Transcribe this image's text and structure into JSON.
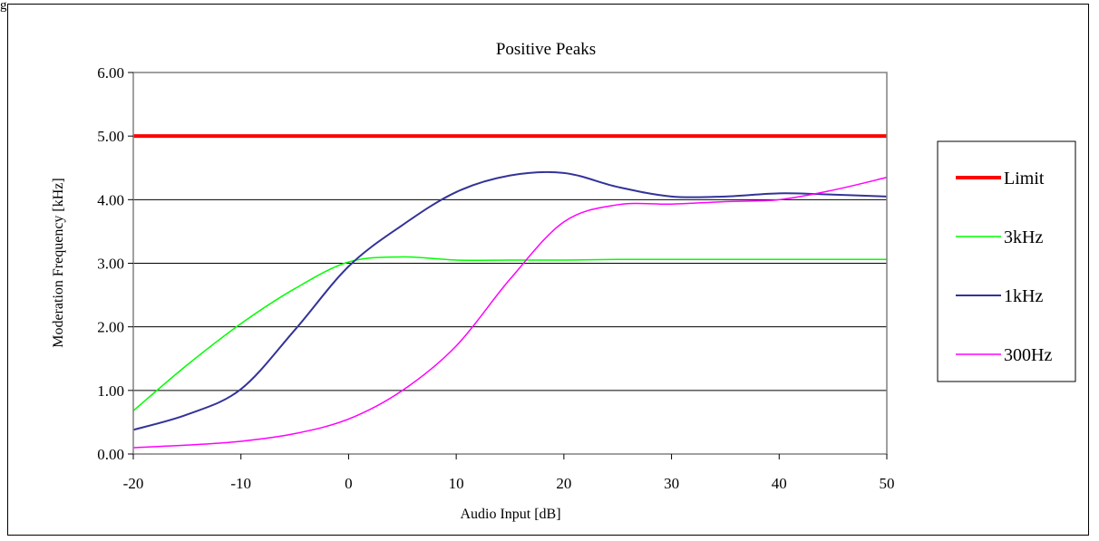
{
  "top_label": "g",
  "chart_data": {
    "type": "line",
    "title": "Positive Peaks",
    "xlabel": "Audio Input [dB]",
    "ylabel": "Moderation Frequency [kHz]",
    "xlim": [
      -20,
      50
    ],
    "ylim": [
      0,
      6
    ],
    "x_ticks": [
      -20,
      -10,
      0,
      10,
      20,
      30,
      40,
      50
    ],
    "x_tick_labels": [
      "-20",
      "-10",
      "0",
      "10",
      "20",
      "30",
      "40",
      "50"
    ],
    "y_ticks": [
      0,
      1,
      2,
      3,
      4,
      5,
      6
    ],
    "y_tick_labels": [
      "0.00",
      "1.00",
      "2.00",
      "3.00",
      "4.00",
      "5.00",
      "6.00"
    ],
    "grid": "horizontal",
    "legend_position": "right",
    "series": [
      {
        "name": "Limit",
        "color": "#ff0000",
        "width": 4,
        "x": [
          -20,
          50
        ],
        "y": [
          5.0,
          5.0
        ]
      },
      {
        "name": "3kHz",
        "color": "#00ff00",
        "width": 1.5,
        "x": [
          -20,
          -15,
          -10,
          -5,
          0,
          5,
          10,
          15,
          20,
          25,
          30,
          35,
          40,
          45,
          50
        ],
        "y": [
          0.68,
          1.4,
          2.05,
          2.6,
          3.02,
          3.1,
          3.05,
          3.05,
          3.05,
          3.06,
          3.06,
          3.06,
          3.06,
          3.06,
          3.06
        ]
      },
      {
        "name": "1kHz",
        "color": "#333399",
        "width": 2,
        "x": [
          -20,
          -15,
          -10,
          -5,
          0,
          5,
          10,
          15,
          20,
          25,
          30,
          35,
          40,
          45,
          50
        ],
        "y": [
          0.38,
          0.62,
          1.02,
          1.95,
          2.95,
          3.6,
          4.12,
          4.38,
          4.42,
          4.2,
          4.05,
          4.05,
          4.1,
          4.08,
          4.05
        ]
      },
      {
        "name": "300Hz",
        "color": "#ff00ff",
        "width": 1.5,
        "x": [
          -20,
          -15,
          -10,
          -5,
          0,
          5,
          10,
          15,
          20,
          25,
          30,
          35,
          40,
          45,
          50
        ],
        "y": [
          0.1,
          0.14,
          0.2,
          0.32,
          0.55,
          1.0,
          1.7,
          2.75,
          3.65,
          3.92,
          3.93,
          3.97,
          4.0,
          4.15,
          4.35
        ]
      }
    ]
  }
}
